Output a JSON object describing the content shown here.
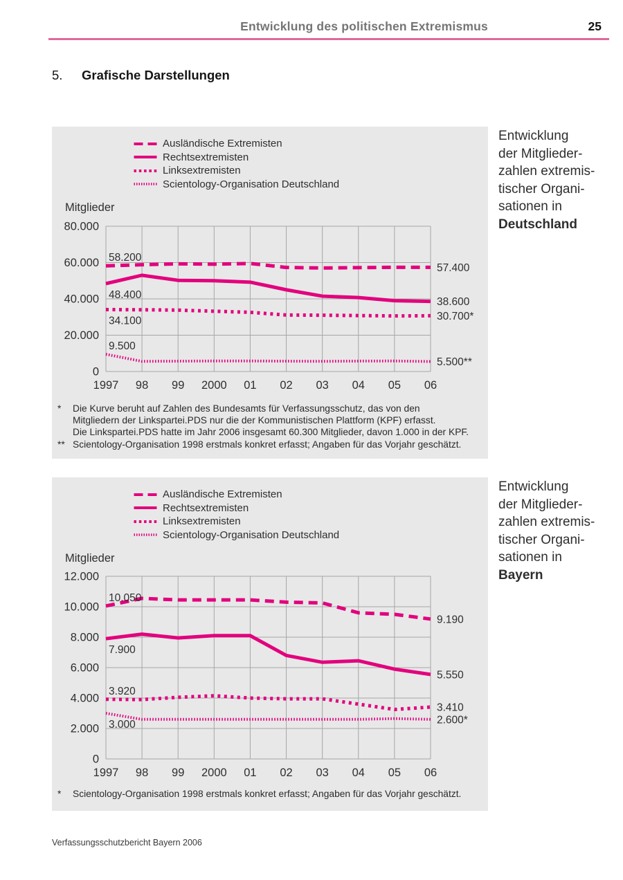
{
  "page": {
    "header": {
      "title": "Entwicklung des politischen Extremismus",
      "page_number": "25"
    },
    "section": {
      "number": "5.",
      "title": "Grafische Darstellungen"
    },
    "footer": "Verfassungsschutzbericht Bayern 2006"
  },
  "colors": {
    "magenta": "#e2007d",
    "header_rule_pink": "#e2679e",
    "chart_background": "#e8e8e8",
    "gridline": "#a6a6a6",
    "axis_text": "#2e2e2e",
    "heading_gray": "#757575"
  },
  "legend": [
    {
      "id": "auslaendische-extremisten",
      "label": "Ausländische Extremisten",
      "style": "dashed"
    },
    {
      "id": "rechtsextremisten",
      "label": "Rechtsextremisten",
      "style": "solid"
    },
    {
      "id": "linksextremisten",
      "label": "Linksextremisten",
      "style": "dotted"
    },
    {
      "id": "scientology-organisation",
      "label": "Scientology-Organisation Deutschland",
      "style": "fine-dotted"
    }
  ],
  "chart_data": [
    {
      "type": "line",
      "region": "Deutschland",
      "side_caption": [
        "Entwicklung",
        "der Mitglieder-",
        "zahlen extremis-",
        "tischer Organi-",
        "sationen in",
        "Deutschland"
      ],
      "ylabel": "Mitglieder",
      "x": [
        "1997",
        "98",
        "99",
        "2000",
        "01",
        "02",
        "03",
        "04",
        "05",
        "06"
      ],
      "ylim": [
        0,
        80000
      ],
      "grid": true,
      "legend_position": "top",
      "yticks": [
        {
          "value": 80000,
          "label": "80.000"
        },
        {
          "value": 60000,
          "label": "60.000"
        },
        {
          "value": 40000,
          "label": "40.000"
        },
        {
          "value": 20000,
          "label": "20.000"
        },
        {
          "value": 0,
          "label": "0"
        }
      ],
      "series": [
        {
          "id": "auslaendische-extremisten",
          "name": "Ausländische Extremisten",
          "style": "dashed",
          "values": [
            58200,
            58800,
            59300,
            59100,
            59500,
            57300,
            57000,
            57200,
            57400,
            57400
          ],
          "start_label": "58.200",
          "start_label_pos": "above",
          "end_label": "57.400"
        },
        {
          "id": "rechtsextremisten",
          "name": "Rechtsextremisten",
          "style": "solid",
          "values": [
            48400,
            53000,
            50200,
            50000,
            49200,
            45000,
            41500,
            40700,
            39000,
            38600
          ],
          "start_label": "48.400",
          "start_label_pos": "below",
          "end_label": "38.600"
        },
        {
          "id": "linksextremisten",
          "name": "Linksextremisten",
          "style": "dotted",
          "values": [
            34100,
            34000,
            33800,
            33200,
            32600,
            31100,
            31000,
            30800,
            30600,
            30700
          ],
          "start_label": "34.100",
          "start_label_pos": "below",
          "end_label": "30.700*"
        },
        {
          "id": "scientology-organisation",
          "name": "Scientology-Organisation Deutschland",
          "style": "fine-dotted",
          "values": [
            9500,
            5600,
            5700,
            5800,
            5800,
            5700,
            5600,
            5750,
            5800,
            5500
          ],
          "start_label": "9.500",
          "start_label_pos": "above",
          "end_label": "5.500**"
        }
      ],
      "footnotes": [
        {
          "marker": "*",
          "lines": [
            "Die Kurve beruht auf Zahlen des Bundesamts für Verfassungsschutz, das von den",
            "Mitgliedern der Linkspartei.PDS nur die der Kommunistischen Plattform (KPF) erfasst.",
            "Die Linkspartei.PDS hatte im Jahr 2006 insgesamt 60.300 Mitglieder, davon 1.000 in der KPF."
          ]
        },
        {
          "marker": "**",
          "lines": [
            "Scientology-Organisation 1998 erstmals konkret erfasst; Angaben für das Vorjahr geschätzt."
          ]
        }
      ]
    },
    {
      "type": "line",
      "region": "Bayern",
      "side_caption": [
        "Entwicklung",
        "der Mitglieder-",
        "zahlen extremis-",
        "tischer Organi-",
        "sationen in",
        "Bayern"
      ],
      "ylabel": "Mitglieder",
      "x": [
        "1997",
        "98",
        "99",
        "2000",
        "01",
        "02",
        "03",
        "04",
        "05",
        "06"
      ],
      "ylim": [
        0,
        12000
      ],
      "grid": true,
      "legend_position": "top",
      "yticks": [
        {
          "value": 12000,
          "label": "12.000"
        },
        {
          "value": 10000,
          "label": "10.000"
        },
        {
          "value": 8000,
          "label": "8.000"
        },
        {
          "value": 6000,
          "label": "6.000"
        },
        {
          "value": 4000,
          "label": "4.000"
        },
        {
          "value": 2000,
          "label": "2.000"
        },
        {
          "value": 0,
          "label": "0"
        }
      ],
      "series": [
        {
          "id": "auslaendische-extremisten",
          "name": "Ausländische Extremisten",
          "style": "dashed",
          "values": [
            10050,
            10550,
            10450,
            10450,
            10450,
            10300,
            10250,
            9600,
            9500,
            9190
          ],
          "start_label": "10.050",
          "start_label_pos": "above",
          "end_label": "9.190"
        },
        {
          "id": "rechtsextremisten",
          "name": "Rechtsextremisten",
          "style": "solid",
          "values": [
            7900,
            8200,
            7950,
            8100,
            8100,
            6800,
            6350,
            6450,
            5900,
            5550
          ],
          "start_label": "7.900",
          "start_label_pos": "below",
          "end_label": "5.550"
        },
        {
          "id": "linksextremisten",
          "name": "Linksextremisten",
          "style": "dotted",
          "values": [
            3920,
            3900,
            4050,
            4150,
            4000,
            3950,
            3950,
            3600,
            3250,
            3410
          ],
          "start_label": "3.920",
          "start_label_pos": "above",
          "end_label": "3.410"
        },
        {
          "id": "scientology-organisation",
          "name": "Scientology-Organisation Deutschland",
          "style": "fine-dotted",
          "values": [
            3000,
            2600,
            2600,
            2600,
            2600,
            2600,
            2600,
            2600,
            2650,
            2600
          ],
          "start_label": "3.000",
          "start_label_pos": "below",
          "end_label": "2.600*"
        }
      ],
      "footnotes": [
        {
          "marker": "*",
          "lines": [
            "Scientology-Organisation 1998 erstmals konkret erfasst; Angaben für das Vorjahr geschätzt."
          ]
        }
      ]
    }
  ]
}
